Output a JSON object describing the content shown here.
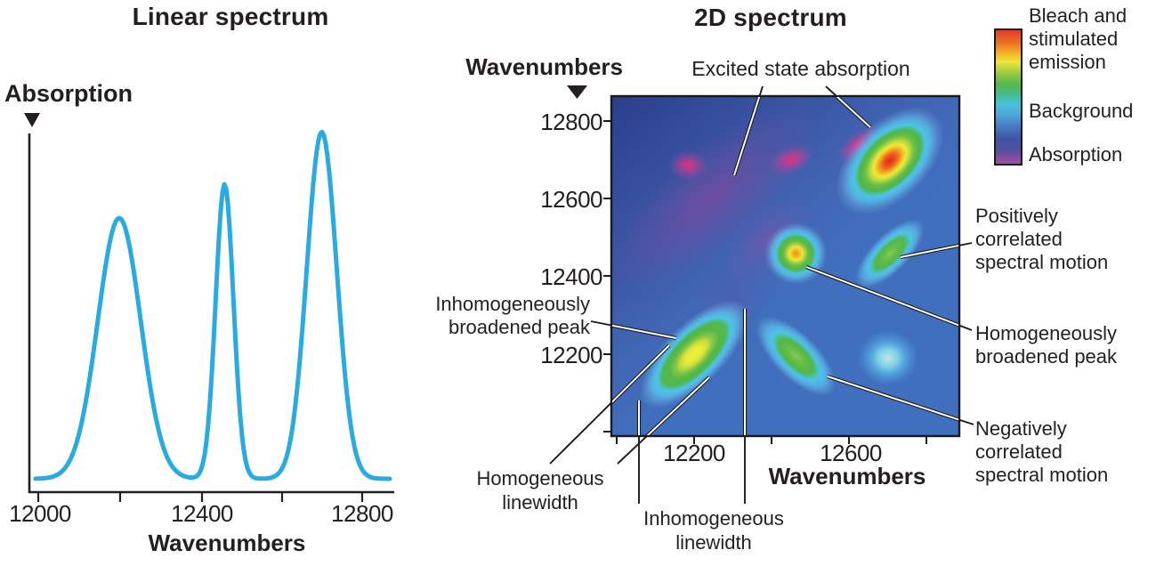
{
  "figure": {
    "left_panel": {
      "title": "Linear spectrum",
      "y_axis_label": "Absorption",
      "x_axis_label": "Wavenumbers",
      "x_tick_labels": [
        "12000",
        "12400",
        "12800"
      ]
    },
    "right_panel": {
      "title": "2D spectrum",
      "y_axis_label": "Wavenumbers",
      "x_axis_label": "Wavenumbers",
      "y_tick_labels": [
        "12800",
        "12600",
        "12400",
        "12200"
      ],
      "x_tick_labels": [
        "12200",
        "12600"
      ],
      "annotations": {
        "excited_state": "Excited state absorption",
        "positively_correlated": "Positively\ncorrelated\nspectral motion",
        "homogeneously_broadened": "Homogeneously\nbroadened peak",
        "negatively_correlated": "Negatively\ncorrelated\nspectral motion",
        "inhomogeneously_broadened": "Inhomogeneously\nbroadened peak",
        "homogeneous_linewidth": "Homogeneous\nlinewidth",
        "inhomogeneous_linewidth": "Inhomogeneous\nlinewidth"
      }
    },
    "legend": {
      "bleach": "Bleach and\nstimulated\nemission",
      "background": "Background",
      "absorption": "Absorption"
    }
  },
  "colors": {
    "curve": "#29abe2",
    "text": "#231f20",
    "map_background": "#3f6fbd",
    "map_dark_corner": "#2b3e87",
    "esa_magenta": "#ed2d7d",
    "bleach_red": "#e2251f",
    "bleach_orange": "#f28d1e",
    "bleach_yellow": "#f2ec3d",
    "bleach_green": "#53b748",
    "background_cyan": "#4bc3e8",
    "absorption_purple": "#a04f9f"
  },
  "chart_data": [
    {
      "type": "line",
      "title": "Linear spectrum",
      "xlabel": "Wavenumbers",
      "ylabel": "Absorption",
      "xlim": [
        11990,
        12870
      ],
      "x_ticks": [
        12000,
        12200,
        12400,
        12600,
        12800
      ],
      "x_tick_labels_shown": [
        12000,
        12400,
        12800
      ],
      "grid": false,
      "line_color": "#29abe2",
      "series": [
        {
          "name": "absorption",
          "model": "sum_of_gaussians",
          "peaks": [
            {
              "center": 12200,
              "amplitude": 1.0,
              "sigma": 53
            },
            {
              "center": 12460,
              "amplitude": 1.13,
              "sigma": 22
            },
            {
              "center": 12700,
              "amplitude": 1.33,
              "sigma": 37
            }
          ]
        }
      ]
    },
    {
      "type": "heatmap",
      "title": "2D spectrum",
      "xlabel": "Wavenumbers",
      "ylabel": "Wavenumbers",
      "xlim": [
        11990,
        12875
      ],
      "ylim": [
        11985,
        12865
      ],
      "x_ticks": [
        12000,
        12200,
        12400,
        12600,
        12800
      ],
      "x_tick_labels_shown": [
        12200,
        12600
      ],
      "y_ticks": [
        12800,
        12600,
        12400,
        12200,
        12000
      ],
      "y_tick_labels_shown": [
        12800,
        12600,
        12400,
        12200
      ],
      "colorbar": {
        "top_label": "Bleach and stimulated emission",
        "middle_label": "Background",
        "bottom_label": "Absorption"
      },
      "peaks": [
        {
          "label": "excited-state absorption blob",
          "x": 12185,
          "y": 12688,
          "rx": 52,
          "ry": 40,
          "tilt": 0,
          "core": "magenta"
        },
        {
          "label": "excited-state absorption blob",
          "x": 12448,
          "y": 12702,
          "rx": 62,
          "ry": 38,
          "tilt": -20,
          "core": "magenta"
        },
        {
          "label": "excited-state absorption blob",
          "x": 12618,
          "y": 12742,
          "rx": 70,
          "ry": 30,
          "tilt": -38,
          "core": "magenta"
        },
        {
          "label": "inhomogeneously broadened diagonal peak",
          "x": 12200,
          "y": 12200,
          "rx": 180,
          "ry": 78,
          "tilt": -45,
          "core": "yellow"
        },
        {
          "label": "homogeneously broadened diagonal peak",
          "x": 12460,
          "y": 12460,
          "rx": 80,
          "ry": 80,
          "tilt": 0,
          "core": "orange"
        },
        {
          "label": "bleach and stimulated emission peak",
          "x": 12700,
          "y": 12700,
          "rx": 168,
          "ry": 100,
          "tilt": -45,
          "core": "red"
        },
        {
          "label": "positively correlated cross peak",
          "x": 12700,
          "y": 12460,
          "rx": 115,
          "ry": 48,
          "tilt": -45,
          "core": "green"
        },
        {
          "label": "negatively correlated cross peak",
          "x": 12460,
          "y": 12195,
          "rx": 132,
          "ry": 58,
          "tilt": 45,
          "core": "green"
        },
        {
          "label": "weak cross peak",
          "x": 12695,
          "y": 12190,
          "rx": 78,
          "ry": 72,
          "tilt": 0,
          "core": "pale-cyan"
        }
      ]
    }
  ]
}
